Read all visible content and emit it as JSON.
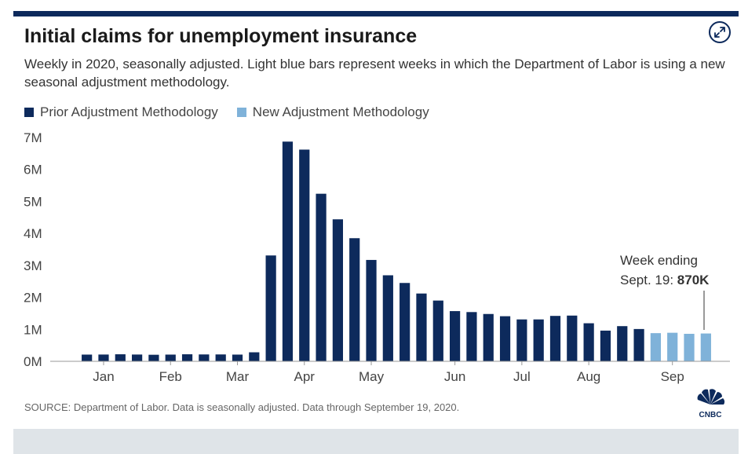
{
  "header": {
    "title": "Initial claims for unemployment insurance",
    "subtitle": "Weekly in 2020, seasonally adjusted. Light blue bars represent weeks in which the Department of Labor is using a new seasonal adjustment methodology."
  },
  "legend": {
    "prior_label": "Prior Adjustment Methodology",
    "new_label": "New Adjustment Methodology"
  },
  "colors": {
    "prior": "#0d2a5c",
    "new": "#7fb2d9",
    "accent": "#0d2a5c"
  },
  "annotation": {
    "line1": "Week ending",
    "line2": "Sept. 19: ",
    "value": "870K"
  },
  "source": "SOURCE: Department of Labor. Data is seasonally adjusted. Data through September 19, 2020.",
  "icons": {
    "expand": "expand-arrows-icon",
    "logo": "cnbc-peacock-logo"
  },
  "chart_data": {
    "type": "bar",
    "title": "Initial claims for unemployment insurance",
    "ylim": [
      0,
      7000000
    ],
    "y_ticks": [
      0,
      1000000,
      2000000,
      3000000,
      4000000,
      5000000,
      6000000,
      7000000
    ],
    "y_tick_labels": [
      "0M",
      "1M",
      "2M",
      "3M",
      "4M",
      "5M",
      "6M",
      "7M"
    ],
    "x_tick_labels": [
      "Jan",
      "Feb",
      "Mar",
      "Apr",
      "May",
      "Jun",
      "Jul",
      "Aug",
      "Sep"
    ],
    "x_tick_bar_index": [
      1,
      5,
      9,
      13,
      17,
      22,
      26,
      30,
      35
    ],
    "grid": false,
    "legend_position": "top-left",
    "series": [
      {
        "name": "Prior Adjustment Methodology",
        "values": [
          210000,
          212000,
          220000,
          212000,
          205000,
          210000,
          220000,
          215000,
          215000,
          210000,
          282000,
          3310000,
          6870000,
          6620000,
          5240000,
          4440000,
          3850000,
          3170000,
          2690000,
          2450000,
          2120000,
          1900000,
          1570000,
          1540000,
          1480000,
          1410000,
          1310000,
          1310000,
          1420000,
          1430000,
          1190000,
          960000,
          1100000,
          1010000,
          null,
          null,
          null,
          null
        ]
      },
      {
        "name": "New Adjustment Methodology",
        "values": [
          null,
          null,
          null,
          null,
          null,
          null,
          null,
          null,
          null,
          null,
          null,
          null,
          null,
          null,
          null,
          null,
          null,
          null,
          null,
          null,
          null,
          null,
          null,
          null,
          null,
          null,
          null,
          null,
          null,
          null,
          null,
          null,
          null,
          null,
          881000,
          893000,
          860000,
          870000
        ]
      }
    ]
  }
}
